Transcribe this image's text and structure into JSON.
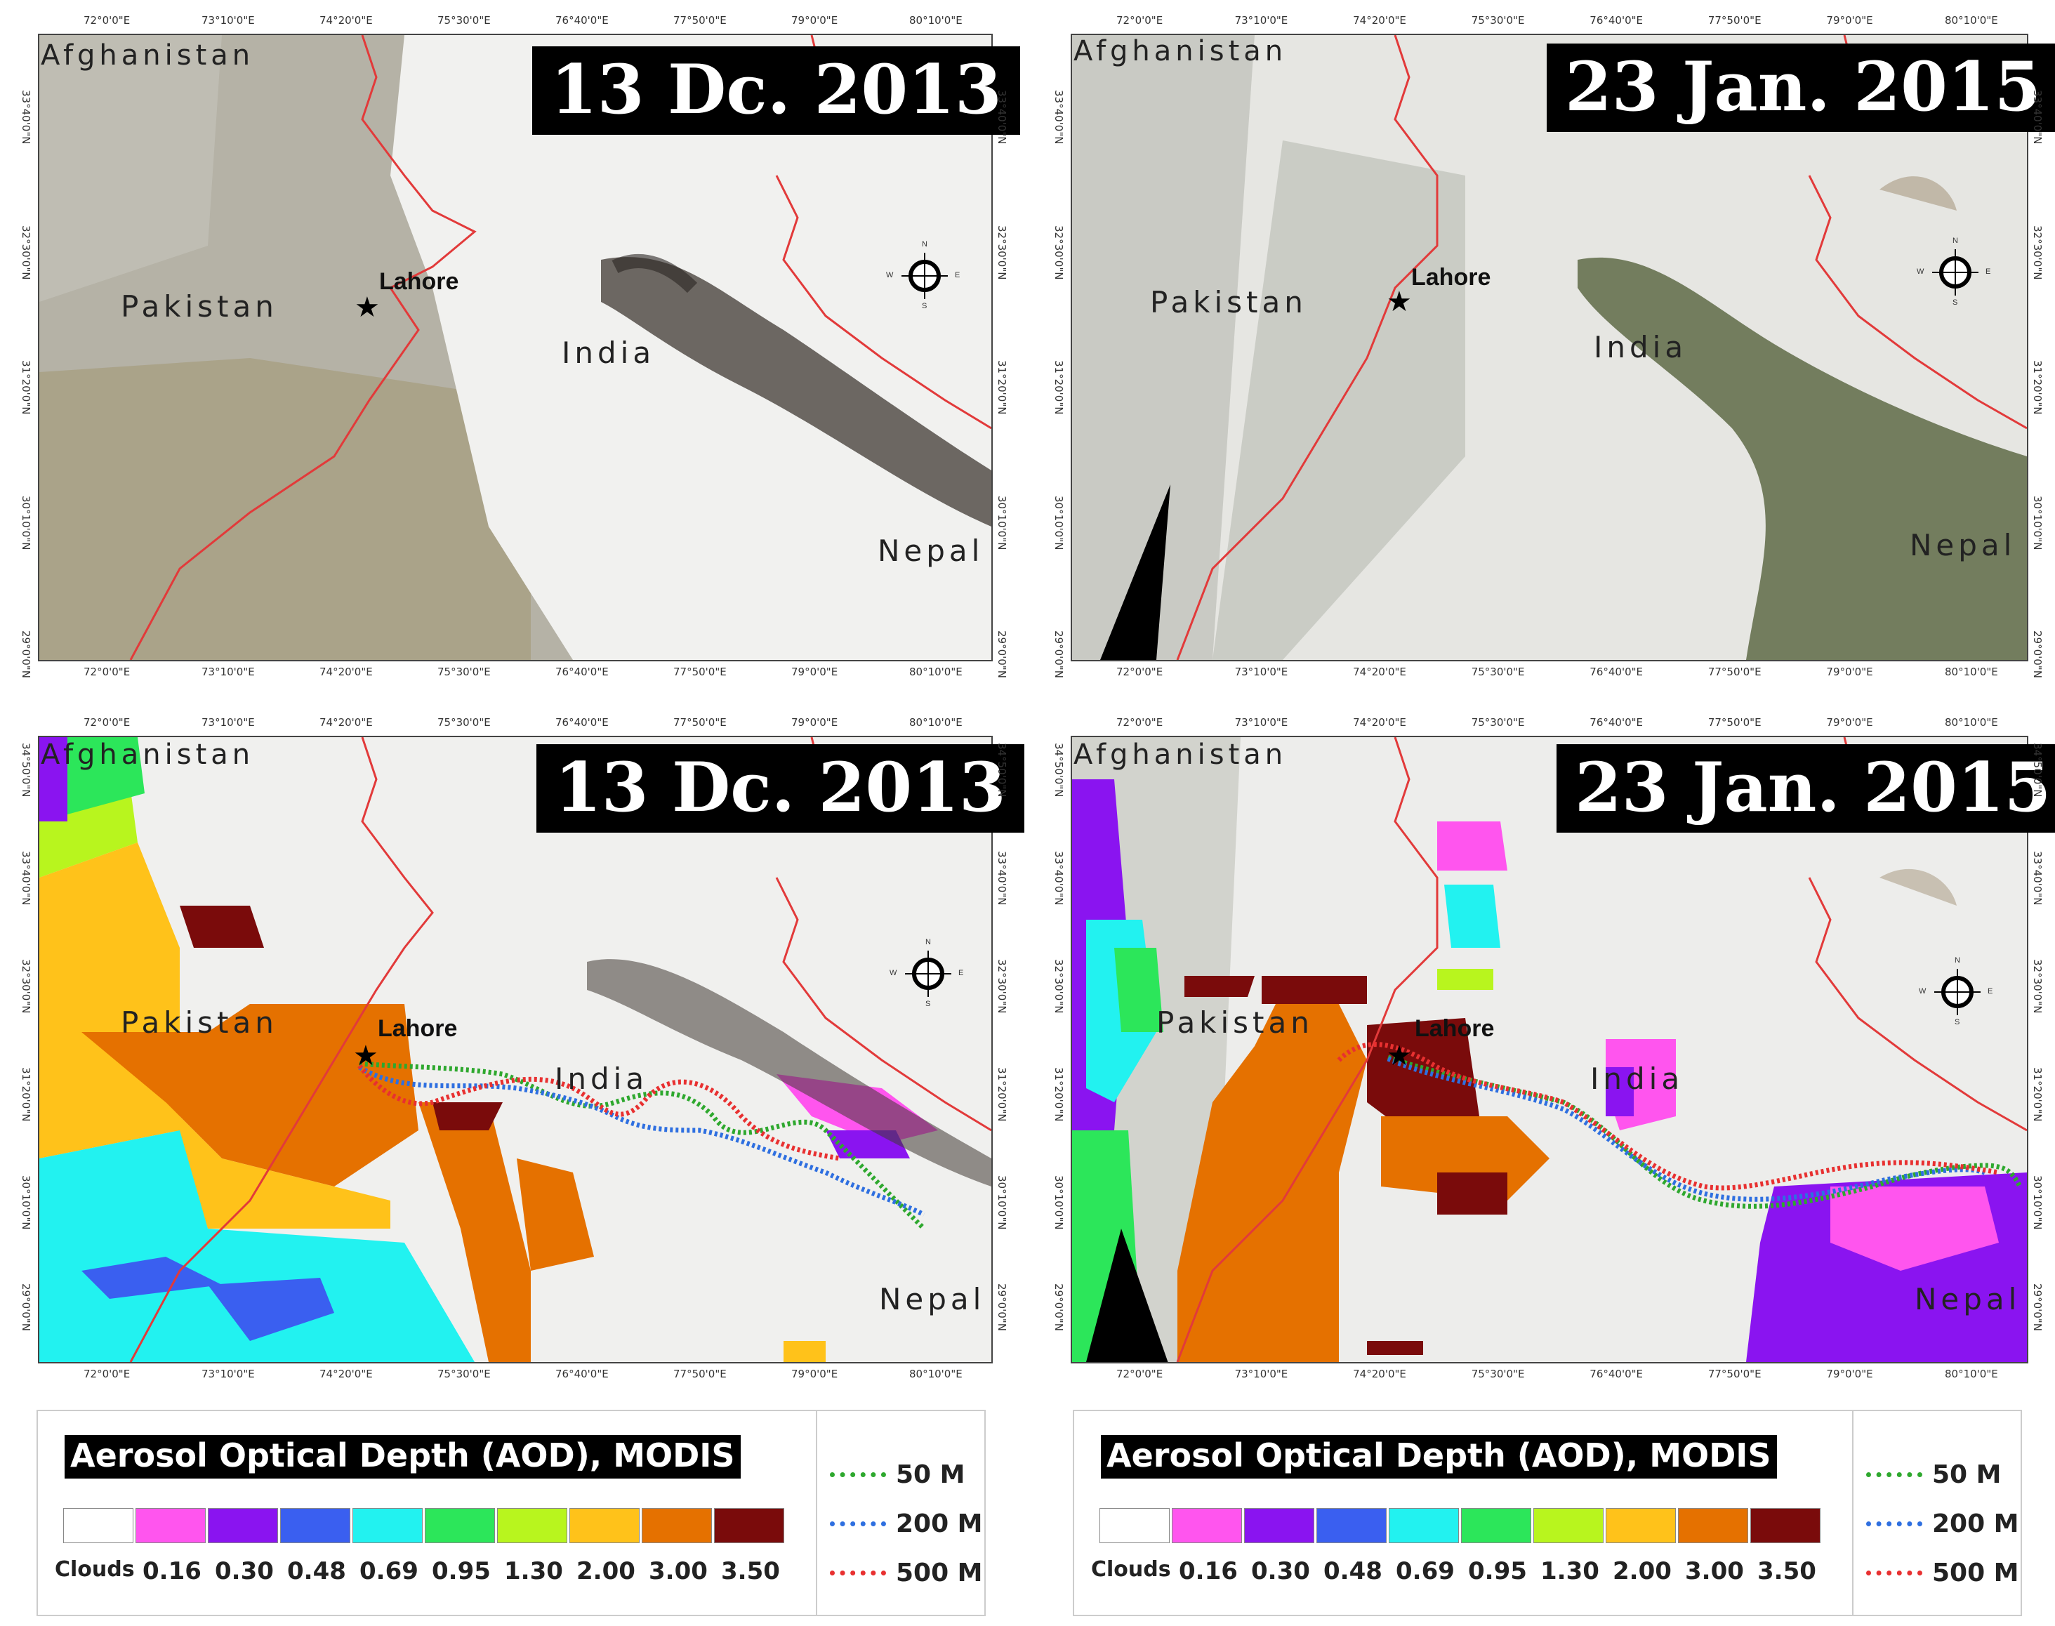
{
  "panels": [
    {
      "id": "tl",
      "date": "13 Dc. 2013",
      "countries": [
        "Afghanistan",
        "Pakistan",
        "India",
        "Nepal"
      ],
      "city": "Lahore"
    },
    {
      "id": "tr",
      "date": "23 Jan. 2015",
      "countries": [
        "Afghanistan",
        "Pakistan",
        "India",
        "Nepal"
      ],
      "city": "Lahore"
    },
    {
      "id": "bl",
      "date": "13 Dc. 2013",
      "countries": [
        "Afghanistan",
        "Pakistan",
        "India",
        "Nepal"
      ],
      "city": "Lahore"
    },
    {
      "id": "br",
      "date": "23 Jan. 2015",
      "countries": [
        "Afghanistan",
        "Pakistan",
        "India",
        "Nepal"
      ],
      "city": "Lahore"
    }
  ],
  "lon_ticks": [
    "72°0'0\"E",
    "73°10'0\"E",
    "74°20'0\"E",
    "75°30'0\"E",
    "76°40'0\"E",
    "77°50'0\"E",
    "79°0'0\"E",
    "80°10'0\"E"
  ],
  "lat_ticks": [
    "34°50'0\"N",
    "33°40'0\"N",
    "32°30'0\"N",
    "31°20'0\"N",
    "30°10'0\"N",
    "29°0'0\"N"
  ],
  "compass": {
    "n": "N",
    "s": "S",
    "e": "E",
    "w": "W"
  },
  "legend": {
    "title": "Aerosol Optical Depth (AOD), MODIS",
    "classes": [
      {
        "label": "Clouds",
        "color": "#ffffff"
      },
      {
        "label": "0.16",
        "color": "#ff55ee"
      },
      {
        "label": "0.30",
        "color": "#8a14f0"
      },
      {
        "label": "0.48",
        "color": "#3a5ff0"
      },
      {
        "label": "0.69",
        "color": "#22f2f0"
      },
      {
        "label": "0.95",
        "color": "#2ce65a"
      },
      {
        "label": "1.30",
        "color": "#b8f51e"
      },
      {
        "label": "2.00",
        "color": "#ffc21a"
      },
      {
        "label": "3.00",
        "color": "#e57100"
      },
      {
        "label": "3.50",
        "color": "#7a0b0b"
      }
    ]
  },
  "trajectories": [
    {
      "label": "50 M",
      "color": "#2ea82e"
    },
    {
      "label": "200 M",
      "color": "#2e6fe0"
    },
    {
      "label": "500 M",
      "color": "#e83030"
    }
  ]
}
